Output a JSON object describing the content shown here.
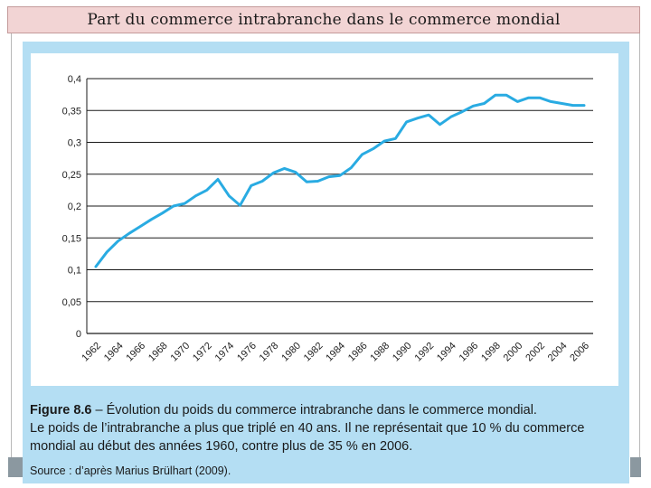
{
  "slide": {
    "title": "Part du commerce intrabranche dans le commerce mondial"
  },
  "caption": {
    "figure_label": "Figure 8.6",
    "figure_title": " – Évolution du poids du commerce intrabranche dans le commerce mondial.",
    "description": "Le poids de l’intrabranche a plus que triplé en 40 ans. Il ne représentait que 10 % du commerce mondial au début des années 1960, contre plus de 35 % en 2006.",
    "source": "Source : d’après Marius Brülhart (2009)."
  },
  "colors": {
    "line": "#29abe2",
    "grid": "#1a1a1a",
    "panel": "#b4def3"
  },
  "chart_data": {
    "type": "line",
    "title": "",
    "xlabel": "",
    "ylabel": "",
    "ylim": [
      0,
      0.4
    ],
    "grid": true,
    "y_ticks": [
      "0",
      "0,05",
      "0,1",
      "0,15",
      "0,2",
      "0,25",
      "0,3",
      "0,35",
      "0,4"
    ],
    "x_ticks": [
      "1962",
      "1964",
      "1966",
      "1968",
      "1970",
      "1972",
      "1974",
      "1976",
      "1978",
      "1980",
      "1982",
      "1984",
      "1986",
      "1988",
      "1990",
      "1992",
      "1994",
      "1996",
      "1998",
      "2000",
      "2002",
      "2004",
      "2006"
    ],
    "series": [
      {
        "name": "Part du commerce intrabranche",
        "x": [
          1962,
          1963,
          1964,
          1965,
          1966,
          1967,
          1968,
          1969,
          1970,
          1971,
          1972,
          1973,
          1974,
          1975,
          1976,
          1977,
          1978,
          1979,
          1980,
          1981,
          1982,
          1983,
          1984,
          1985,
          1986,
          1987,
          1988,
          1989,
          1990,
          1991,
          1992,
          1993,
          1994,
          1995,
          1996,
          1997,
          1998,
          1999,
          2000,
          2001,
          2002,
          2003,
          2004,
          2005,
          2006
        ],
        "values": [
          0.105,
          0.128,
          0.145,
          0.157,
          0.168,
          0.179,
          0.189,
          0.2,
          0.204,
          0.216,
          0.225,
          0.242,
          0.216,
          0.201,
          0.232,
          0.239,
          0.252,
          0.259,
          0.253,
          0.238,
          0.239,
          0.246,
          0.248,
          0.26,
          0.281,
          0.29,
          0.302,
          0.306,
          0.332,
          0.338,
          0.343,
          0.328,
          0.34,
          0.348,
          0.357,
          0.361,
          0.374,
          0.374,
          0.364,
          0.37,
          0.37,
          0.364,
          0.361,
          0.358,
          0.358
        ]
      }
    ]
  }
}
